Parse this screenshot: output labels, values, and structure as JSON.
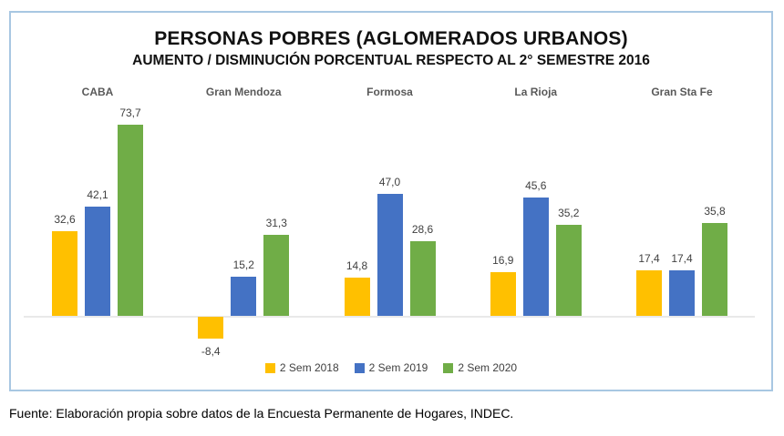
{
  "frame": {
    "border_color": "#A8C7E2",
    "axis_line_color": "#E9E9E9"
  },
  "chart_data": {
    "type": "bar",
    "title": "PERSONAS POBRES (AGLOMERADOS URBANOS)",
    "subtitle": "AUMENTO / DISMINUCIÓN PORCENTUAL RESPECTO AL 2° SEMESTRE 2016",
    "categories": [
      "CABA",
      "Gran Mendoza",
      "Formosa",
      "La Rioja",
      "Gran Sta Fe"
    ],
    "series": [
      {
        "name": "2 Sem 2018",
        "color": "#FFC000",
        "values": [
          32.6,
          -8.4,
          14.8,
          16.9,
          17.4
        ],
        "labels": [
          "32,6",
          "-8,4",
          "14,8",
          "16,9",
          "17,4"
        ]
      },
      {
        "name": "2 Sem 2019",
        "color": "#4472C4",
        "values": [
          42.1,
          15.2,
          47.0,
          45.6,
          17.4
        ],
        "labels": [
          "42,1",
          "15,2",
          "47,0",
          "45,6",
          "17,4"
        ]
      },
      {
        "name": "2 Sem 2020",
        "color": "#70AD47",
        "values": [
          73.7,
          31.3,
          28.6,
          35.2,
          35.8
        ],
        "labels": [
          "73,7",
          "31,3",
          "28,6",
          "35,2",
          "35,8"
        ]
      }
    ],
    "baseline": 0,
    "ylim": [
      -15,
      85
    ],
    "grid": false,
    "legend_position": "bottom",
    "value_labels_shown": true,
    "decimal_separator": ","
  },
  "footer": {
    "source": "Fuente: Elaboración propia sobre datos de la Encuesta Permanente de Hogares, INDEC."
  }
}
